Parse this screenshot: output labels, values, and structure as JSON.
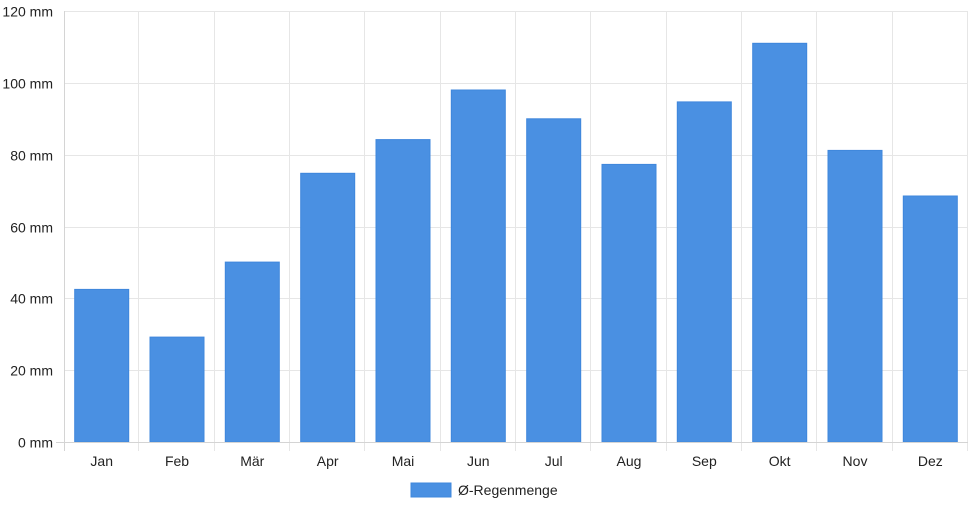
{
  "colors": {
    "bar_fill": "#4a90e2",
    "bar_stroke": "#3f87dc"
  },
  "chart_data": {
    "type": "bar",
    "categories": [
      "Jan",
      "Feb",
      "Mär",
      "Apr",
      "Mai",
      "Jun",
      "Jul",
      "Aug",
      "Sep",
      "Okt",
      "Nov",
      "Dez"
    ],
    "series": [
      {
        "name": "Ø-Regenmenge",
        "values": [
          42.5,
          29.2,
          50.1,
          74.8,
          84.2,
          98.0,
          90.0,
          77.3,
          94.7,
          111.0,
          81.2,
          68.5
        ]
      }
    ],
    "ylim": [
      0,
      120
    ],
    "yticks": [
      0,
      20,
      40,
      60,
      80,
      100,
      120
    ],
    "ytick_labels": [
      "0 mm",
      "20 mm",
      "40 mm",
      "60 mm",
      "80 mm",
      "100 mm",
      "120 mm"
    ],
    "grid": true,
    "legend_position": "bottom-center"
  }
}
